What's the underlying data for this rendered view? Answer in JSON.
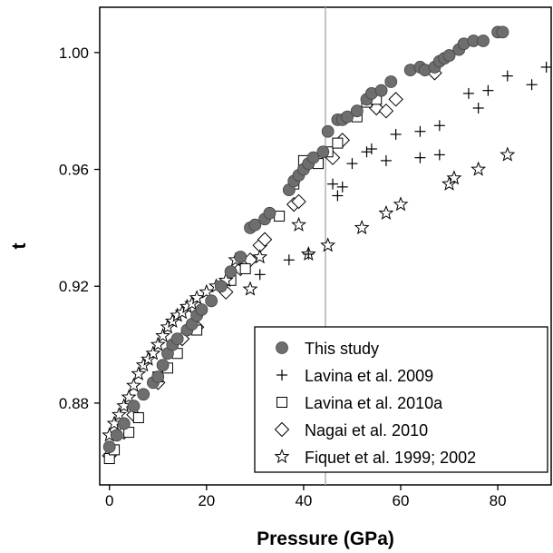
{
  "chart_data": {
    "type": "scatter",
    "xlabel": "Pressure (GPa)",
    "ylabel": "t",
    "xlim": [
      -2,
      91
    ],
    "ylim": [
      0.852,
      1.0155
    ],
    "x_ticks": [
      0,
      20,
      40,
      60,
      80
    ],
    "y_ticks": [
      0.88,
      0.92,
      0.96,
      1.0
    ],
    "x_tick_labels": [
      "0",
      "20",
      "40",
      "60",
      "80"
    ],
    "y_tick_labels": [
      "0.88",
      "0.92",
      "0.96",
      "1.00"
    ],
    "reference_line_x": 44.5,
    "legend_position": "bottom-right",
    "series": [
      {
        "name": "This study",
        "marker": "filled-circle",
        "color": "#6e6e6e",
        "points": [
          [
            0,
            0.865
          ],
          [
            1.5,
            0.869
          ],
          [
            3,
            0.873
          ],
          [
            5,
            0.879
          ],
          [
            7,
            0.883
          ],
          [
            9,
            0.887
          ],
          [
            10,
            0.889
          ],
          [
            11,
            0.893
          ],
          [
            12,
            0.897
          ],
          [
            13,
            0.9
          ],
          [
            14,
            0.902
          ],
          [
            16,
            0.905
          ],
          [
            17,
            0.907
          ],
          [
            18,
            0.91
          ],
          [
            19,
            0.912
          ],
          [
            21,
            0.915
          ],
          [
            23,
            0.92
          ],
          [
            25,
            0.925
          ],
          [
            27,
            0.93
          ],
          [
            29,
            0.94
          ],
          [
            30,
            0.941
          ],
          [
            32,
            0.943
          ],
          [
            33,
            0.945
          ],
          [
            37,
            0.953
          ],
          [
            38,
            0.956
          ],
          [
            39,
            0.958
          ],
          [
            40,
            0.96
          ],
          [
            41,
            0.962
          ],
          [
            42,
            0.964
          ],
          [
            44,
            0.966
          ],
          [
            45,
            0.973
          ],
          [
            47,
            0.977
          ],
          [
            48,
            0.977
          ],
          [
            49,
            0.978
          ],
          [
            51,
            0.98
          ],
          [
            53,
            0.984
          ],
          [
            54,
            0.986
          ],
          [
            56,
            0.987
          ],
          [
            58,
            0.99
          ],
          [
            62,
            0.994
          ],
          [
            64,
            0.995
          ],
          [
            65,
            0.994
          ],
          [
            67,
            0.995
          ],
          [
            68,
            0.997
          ],
          [
            69,
            0.998
          ],
          [
            70,
            0.999
          ],
          [
            72,
            1.001
          ],
          [
            73,
            1.003
          ],
          [
            75,
            1.004
          ],
          [
            77,
            1.004
          ],
          [
            80,
            1.007
          ],
          [
            81,
            1.007
          ]
        ]
      },
      {
        "name": "Lavina et al. 2009",
        "marker": "plus",
        "color": "#000000",
        "points": [
          [
            31,
            0.924
          ],
          [
            37,
            0.929
          ],
          [
            41,
            0.931
          ],
          [
            46,
            0.955
          ],
          [
            47,
            0.951
          ],
          [
            48,
            0.954
          ],
          [
            50,
            0.962
          ],
          [
            53,
            0.966
          ],
          [
            54,
            0.967
          ],
          [
            57,
            0.963
          ],
          [
            59,
            0.972
          ],
          [
            64,
            0.973
          ],
          [
            64,
            0.964
          ],
          [
            68,
            0.975
          ],
          [
            68,
            0.965
          ],
          [
            74,
            0.986
          ],
          [
            76,
            0.981
          ],
          [
            78,
            0.987
          ],
          [
            82,
            0.992
          ],
          [
            87,
            0.989
          ],
          [
            90,
            0.995
          ]
        ]
      },
      {
        "name": "Lavina et al. 2010a",
        "marker": "open-square",
        "color": "#000000",
        "points": [
          [
            0,
            0.861
          ],
          [
            1,
            0.864
          ],
          [
            4,
            0.87
          ],
          [
            6,
            0.875
          ],
          [
            10,
            0.889
          ],
          [
            12,
            0.892
          ],
          [
            14,
            0.897
          ],
          [
            18,
            0.905
          ],
          [
            25,
            0.922
          ],
          [
            28,
            0.926
          ],
          [
            35,
            0.944
          ],
          [
            38,
            0.955
          ],
          [
            40,
            0.963
          ],
          [
            42,
            0.963
          ],
          [
            43,
            0.962
          ],
          [
            45,
            0.966
          ],
          [
            47,
            0.969
          ],
          [
            51,
            0.978
          ],
          [
            53,
            0.983
          ],
          [
            55,
            0.984
          ]
        ]
      },
      {
        "name": "Nagai et al.  2010",
        "marker": "open-diamond",
        "color": "#000000",
        "points": [
          [
            0,
            0.862
          ],
          [
            3,
            0.87
          ],
          [
            5,
            0.876
          ],
          [
            10,
            0.887
          ],
          [
            15,
            0.902
          ],
          [
            18,
            0.906
          ],
          [
            24,
            0.918
          ],
          [
            27,
            0.926
          ],
          [
            29,
            0.929
          ],
          [
            31,
            0.934
          ],
          [
            32,
            0.936
          ],
          [
            38,
            0.948
          ],
          [
            39,
            0.949
          ],
          [
            46,
            0.964
          ],
          [
            48,
            0.97
          ],
          [
            55,
            0.981
          ],
          [
            57,
            0.98
          ],
          [
            59,
            0.984
          ],
          [
            67,
            0.993
          ]
        ]
      },
      {
        "name": "Fiquet et al. 1999; 2002",
        "marker": "open-star",
        "color": "#000000",
        "points": [
          [
            0,
            0.869
          ],
          [
            1,
            0.873
          ],
          [
            2,
            0.876
          ],
          [
            3,
            0.879
          ],
          [
            4,
            0.882
          ],
          [
            5,
            0.886
          ],
          [
            6,
            0.89
          ],
          [
            7,
            0.893
          ],
          [
            8,
            0.895
          ],
          [
            9,
            0.897
          ],
          [
            10,
            0.9
          ],
          [
            11,
            0.903
          ],
          [
            12,
            0.906
          ],
          [
            13,
            0.908
          ],
          [
            14,
            0.91
          ],
          [
            15,
            0.911
          ],
          [
            16,
            0.913
          ],
          [
            17,
            0.914
          ],
          [
            18,
            0.916
          ],
          [
            20,
            0.918
          ],
          [
            22,
            0.92
          ],
          [
            24,
            0.922
          ],
          [
            26,
            0.929
          ],
          [
            29,
            0.919
          ],
          [
            31,
            0.93
          ],
          [
            39,
            0.941
          ],
          [
            41,
            0.931
          ],
          [
            45,
            0.934
          ],
          [
            52,
            0.94
          ],
          [
            57,
            0.945
          ],
          [
            60,
            0.948
          ],
          [
            70,
            0.955
          ],
          [
            71,
            0.957
          ],
          [
            76,
            0.96
          ],
          [
            82,
            0.965
          ]
        ]
      }
    ]
  }
}
